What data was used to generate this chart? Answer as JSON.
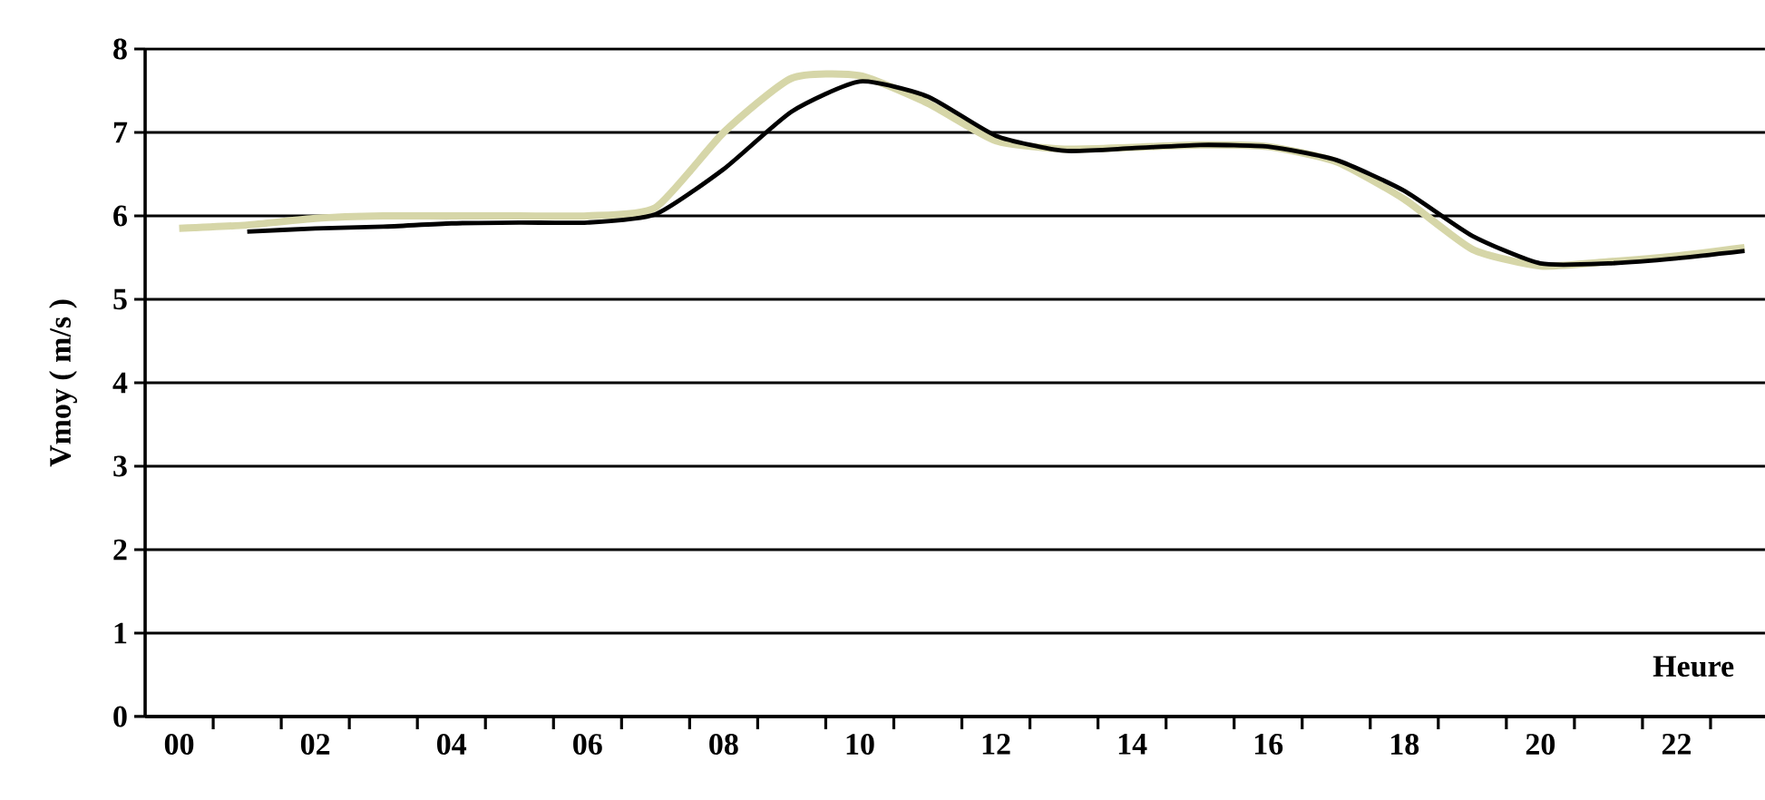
{
  "chart_data": {
    "type": "line",
    "xlabel": "Heure",
    "ylabel": "Vmoy ( m/s )",
    "categories": [
      "00",
      null,
      "02",
      null,
      "04",
      null,
      "06",
      null,
      "08",
      null,
      "10",
      null,
      "12",
      null,
      "14",
      null,
      "16",
      null,
      "18",
      null,
      "20",
      null,
      "22",
      null
    ],
    "series": [
      {
        "color": "#d6d6a8",
        "values": [
          5.85,
          5.89,
          5.97,
          6.0,
          6.0,
          6.0,
          6.0,
          6.1,
          7.0,
          7.65,
          7.68,
          7.35,
          6.9,
          6.8,
          6.82,
          6.85,
          6.83,
          6.65,
          6.2,
          5.6,
          5.4,
          5.45,
          5.52,
          5.62
        ]
      },
      {
        "color": "#000000",
        "values": [
          null,
          5.81,
          5.85,
          5.87,
          5.91,
          5.92,
          5.92,
          6.02,
          6.56,
          7.25,
          7.61,
          7.43,
          6.96,
          6.78,
          6.81,
          6.85,
          6.83,
          6.67,
          6.3,
          5.76,
          5.43,
          5.43,
          5.49,
          5.58
        ]
      }
    ],
    "ylim": [
      0,
      8
    ],
    "yticks": [
      0,
      1,
      2,
      3,
      4,
      5,
      6,
      7,
      8
    ],
    "grid": "y",
    "marker": "none",
    "line_style": "solid"
  }
}
